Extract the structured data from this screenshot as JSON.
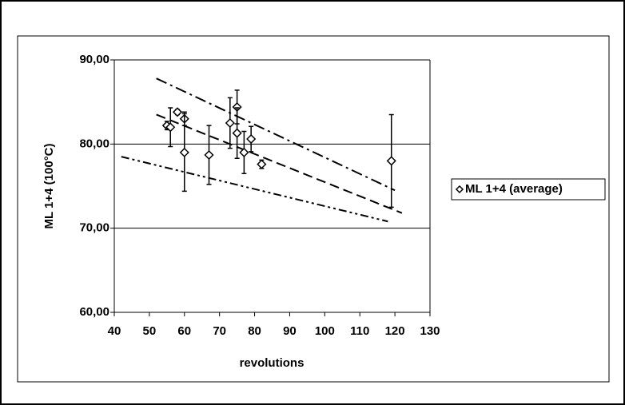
{
  "chart_data": {
    "type": "scatter",
    "x_label": "revolutions",
    "y_label": "ML 1+4 (100°C)",
    "xlim": [
      40,
      130
    ],
    "xticks": [
      40,
      50,
      60,
      70,
      80,
      90,
      100,
      110,
      120,
      130
    ],
    "ylim": [
      60,
      90
    ],
    "yticks": [
      {
        "value": 60,
        "label": "60,00"
      },
      {
        "value": 70,
        "label": "70,00"
      },
      {
        "value": 80,
        "label": "80,00"
      },
      {
        "value": 90,
        "label": "90,00"
      }
    ],
    "grid": true,
    "legend": "right",
    "series": [
      {
        "name": "ML 1+4 (average)",
        "color": "#000000",
        "x": [
          55,
          56,
          58,
          60,
          60,
          67,
          73,
          75,
          75,
          77,
          79,
          82,
          119
        ],
        "values": [
          82.2,
          82.0,
          83.8,
          83.0,
          79.0,
          78.7,
          82.5,
          84.4,
          81.3,
          79.0,
          80.6,
          77.6,
          78.0
        ],
        "errors": [
          0.5,
          2.3,
          0.3,
          0.8,
          4.6,
          3.5,
          3.0,
          2.0,
          3.0,
          2.5,
          1.5,
          0.5,
          5.5
        ]
      }
    ],
    "trend_lines": [
      {
        "x": [
          52,
          120
        ],
        "y": [
          87.8,
          74.5
        ],
        "dash": "14 5 3 5"
      },
      {
        "x": [
          52,
          122
        ],
        "y": [
          83.5,
          71.8
        ],
        "dash": "12 6"
      },
      {
        "x": [
          42,
          118
        ],
        "y": [
          78.5,
          70.8
        ],
        "dash": "10 4 3 4 3 4"
      }
    ]
  }
}
